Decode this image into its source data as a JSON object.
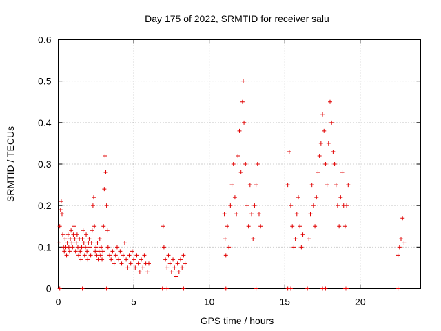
{
  "chart_data": {
    "type": "scatter",
    "title": "Day 175 of 2022, SRMTID for receiver salu",
    "xlabel": "GPS time / hours",
    "ylabel": "SRMTID / TECUs",
    "xlim": [
      0,
      24
    ],
    "ylim": [
      0,
      0.6
    ],
    "xticks": [
      0,
      5,
      10,
      15,
      20
    ],
    "yticks": [
      0,
      0.1,
      0.2,
      0.3,
      0.4,
      0.5,
      0.6
    ],
    "xtick_labels": [
      "0",
      "5",
      "10",
      "15",
      "20"
    ],
    "ytick_labels": [
      "0",
      "0.1",
      "0.2",
      "0.3",
      "0.4",
      "0.5",
      "0.6"
    ],
    "grid": true,
    "marker": "+",
    "marker_color": "#e00000",
    "series": [
      {
        "name": "SRMTID",
        "points": [
          [
            0.05,
            0.11
          ],
          [
            0.1,
            0.15
          ],
          [
            0.15,
            0.19
          ],
          [
            0.2,
            0.21
          ],
          [
            0.25,
            0.18
          ],
          [
            0.3,
            0.13
          ],
          [
            0.35,
            0.1
          ],
          [
            0.4,
            0.09
          ],
          [
            0.45,
            0.12
          ],
          [
            0.5,
            0.1
          ],
          [
            0.55,
            0.08
          ],
          [
            0.6,
            0.11
          ],
          [
            0.65,
            0.13
          ],
          [
            0.7,
            0.1
          ],
          [
            0.75,
            0.09
          ],
          [
            0.8,
            0.12
          ],
          [
            0.85,
            0.14
          ],
          [
            0.9,
            0.11
          ],
          [
            0.95,
            0.1
          ],
          [
            1.0,
            0.13
          ],
          [
            1.05,
            0.15
          ],
          [
            1.1,
            0.12
          ],
          [
            1.15,
            0.09
          ],
          [
            1.2,
            0.11
          ],
          [
            1.25,
            0.13
          ],
          [
            1.3,
            0.1
          ],
          [
            1.35,
            0.08
          ],
          [
            1.4,
            0.12
          ],
          [
            1.45,
            0.09
          ],
          [
            1.5,
            0.07
          ],
          [
            1.55,
            0.1
          ],
          [
            1.6,
            0.12
          ],
          [
            1.65,
            0.14
          ],
          [
            1.7,
            0.11
          ],
          [
            1.75,
            0.08
          ],
          [
            1.8,
            0.1
          ],
          [
            1.85,
            0.13
          ],
          [
            1.9,
            0.09
          ],
          [
            1.95,
            0.07
          ],
          [
            2.0,
            0.11
          ],
          [
            2.05,
            0.12
          ],
          [
            2.1,
            0.1
          ],
          [
            2.15,
            0.08
          ],
          [
            2.2,
            0.11
          ],
          [
            2.25,
            0.14
          ],
          [
            2.3,
            0.2
          ],
          [
            2.35,
            0.22
          ],
          [
            2.4,
            0.15
          ],
          [
            2.45,
            0.09
          ],
          [
            2.5,
            0.1
          ],
          [
            2.55,
            0.08
          ],
          [
            2.6,
            0.11
          ],
          [
            2.65,
            0.07
          ],
          [
            2.7,
            0.09
          ],
          [
            2.75,
            0.12
          ],
          [
            2.8,
            0.08
          ],
          [
            2.85,
            0.1
          ],
          [
            2.9,
            0.07
          ],
          [
            2.95,
            0.09
          ],
          [
            3.0,
            0.15
          ],
          [
            3.05,
            0.24
          ],
          [
            3.1,
            0.32
          ],
          [
            3.15,
            0.28
          ],
          [
            3.2,
            0.2
          ],
          [
            3.25,
            0.14
          ],
          [
            3.3,
            0.1
          ],
          [
            3.4,
            0.08
          ],
          [
            3.5,
            0.07
          ],
          [
            3.6,
            0.09
          ],
          [
            3.7,
            0.06
          ],
          [
            3.8,
            0.08
          ],
          [
            3.9,
            0.1
          ],
          [
            4.0,
            0.07
          ],
          [
            4.1,
            0.09
          ],
          [
            4.2,
            0.06
          ],
          [
            4.3,
            0.08
          ],
          [
            4.4,
            0.11
          ],
          [
            4.5,
            0.07
          ],
          [
            4.6,
            0.05
          ],
          [
            4.7,
            0.08
          ],
          [
            4.8,
            0.06
          ],
          [
            4.9,
            0.09
          ],
          [
            5.0,
            0.07
          ],
          [
            5.1,
            0.05
          ],
          [
            5.2,
            0.08
          ],
          [
            5.3,
            0.06
          ],
          [
            5.4,
            0.04
          ],
          [
            5.5,
            0.07
          ],
          [
            5.6,
            0.05
          ],
          [
            5.7,
            0.08
          ],
          [
            5.8,
            0.06
          ],
          [
            5.9,
            0.04
          ],
          [
            6.0,
            0.06
          ],
          [
            6.95,
            0.15
          ],
          [
            7.0,
            0.1
          ],
          [
            7.1,
            0.07
          ],
          [
            7.2,
            0.05
          ],
          [
            7.3,
            0.08
          ],
          [
            7.4,
            0.06
          ],
          [
            7.5,
            0.04
          ],
          [
            7.6,
            0.07
          ],
          [
            7.7,
            0.05
          ],
          [
            7.8,
            0.03
          ],
          [
            7.9,
            0.06
          ],
          [
            8.0,
            0.04
          ],
          [
            8.1,
            0.07
          ],
          [
            8.2,
            0.05
          ],
          [
            8.3,
            0.08
          ],
          [
            8.4,
            0.06
          ],
          [
            11.0,
            0.18
          ],
          [
            11.05,
            0.12
          ],
          [
            11.1,
            0.08
          ],
          [
            11.2,
            0.15
          ],
          [
            11.3,
            0.1
          ],
          [
            11.4,
            0.2
          ],
          [
            11.5,
            0.25
          ],
          [
            11.6,
            0.3
          ],
          [
            11.7,
            0.22
          ],
          [
            11.8,
            0.18
          ],
          [
            11.9,
            0.32
          ],
          [
            12.0,
            0.38
          ],
          [
            12.1,
            0.28
          ],
          [
            12.2,
            0.45
          ],
          [
            12.25,
            0.5
          ],
          [
            12.3,
            0.4
          ],
          [
            12.4,
            0.3
          ],
          [
            12.5,
            0.2
          ],
          [
            12.6,
            0.15
          ],
          [
            12.7,
            0.25
          ],
          [
            12.8,
            0.18
          ],
          [
            12.9,
            0.12
          ],
          [
            13.0,
            0.2
          ],
          [
            13.1,
            0.25
          ],
          [
            13.2,
            0.3
          ],
          [
            13.3,
            0.18
          ],
          [
            13.4,
            0.15
          ],
          [
            15.2,
            0.25
          ],
          [
            15.3,
            0.33
          ],
          [
            15.4,
            0.2
          ],
          [
            15.5,
            0.15
          ],
          [
            15.6,
            0.1
          ],
          [
            15.7,
            0.12
          ],
          [
            15.8,
            0.18
          ],
          [
            15.9,
            0.22
          ],
          [
            16.0,
            0.15
          ],
          [
            16.1,
            0.1
          ],
          [
            16.2,
            0.13
          ],
          [
            16.6,
            0.12
          ],
          [
            16.7,
            0.18
          ],
          [
            16.8,
            0.25
          ],
          [
            16.9,
            0.2
          ],
          [
            17.0,
            0.15
          ],
          [
            17.1,
            0.22
          ],
          [
            17.2,
            0.28
          ],
          [
            17.3,
            0.32
          ],
          [
            17.4,
            0.35
          ],
          [
            17.5,
            0.42
          ],
          [
            17.6,
            0.38
          ],
          [
            17.7,
            0.3
          ],
          [
            17.8,
            0.25
          ],
          [
            17.9,
            0.35
          ],
          [
            18.0,
            0.45
          ],
          [
            18.1,
            0.4
          ],
          [
            18.2,
            0.33
          ],
          [
            18.3,
            0.3
          ],
          [
            18.4,
            0.25
          ],
          [
            18.5,
            0.2
          ],
          [
            18.6,
            0.15
          ],
          [
            18.7,
            0.22
          ],
          [
            18.8,
            0.28
          ],
          [
            18.9,
            0.2
          ],
          [
            19.0,
            0.15
          ],
          [
            19.1,
            0.2
          ],
          [
            19.2,
            0.25
          ],
          [
            22.5,
            0.08
          ],
          [
            22.6,
            0.1
          ],
          [
            22.7,
            0.12
          ],
          [
            22.8,
            0.17
          ],
          [
            22.9,
            0.11
          ]
        ]
      }
    ],
    "zero_markers_x": [
      0.1,
      1.6,
      3.2,
      6.9,
      7.2,
      8.3,
      11.1,
      13.1,
      15.2,
      15.4,
      16.5,
      17.5,
      17.7,
      19.0,
      19.1,
      22.5
    ]
  }
}
